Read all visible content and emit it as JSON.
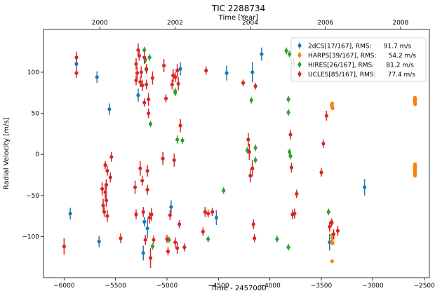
{
  "chart_data": {
    "type": "scatter",
    "title": "TIC 2288734",
    "xlabel": "Time - 2457000",
    "ylabel": "Radial Velocity [m/s]",
    "top_xlabel": "Time [Year]",
    "xlim": [
      -6200,
      -2450
    ],
    "ylim": [
      -150,
      152
    ],
    "xticks": [
      -6000,
      -5500,
      -5000,
      -4500,
      -4000,
      -3500,
      -3000,
      -2500
    ],
    "yticks": [
      -100,
      -50,
      0,
      50,
      100
    ],
    "top_ticks": [
      {
        "label": "2000",
        "x": -5653
      },
      {
        "label": "2002",
        "x": -4922
      },
      {
        "label": "2004",
        "x": -4192
      },
      {
        "label": "2006",
        "x": -3461
      },
      {
        "label": "2008",
        "x": -2730
      }
    ],
    "legend_position": "top-right",
    "series": [
      {
        "name": "2dCS[17/167], RMS:      91.7 m/s",
        "color": "#1f77b4",
        "points": [
          [
            -5880,
            110,
            7
          ],
          [
            -5940,
            -72,
            7
          ],
          [
            -5680,
            94,
            7
          ],
          [
            -5660,
            -106,
            7
          ],
          [
            -5560,
            55,
            7
          ],
          [
            -5280,
            72,
            8
          ],
          [
            -5230,
            -120,
            9
          ],
          [
            -5220,
            -82,
            6
          ],
          [
            -5190,
            -90,
            12
          ],
          [
            -4960,
            -64,
            8
          ],
          [
            -4870,
            104,
            8
          ],
          [
            -4520,
            -77,
            9
          ],
          [
            -4420,
            99,
            9
          ],
          [
            -4170,
            100,
            12
          ],
          [
            -4080,
            122,
            8
          ],
          [
            -3420,
            -107,
            10
          ],
          [
            -3080,
            -40,
            10
          ]
        ]
      },
      {
        "name": "HARPS[39/167], RMS:      54.2 m/s",
        "color": "#ff7f0e",
        "points": [
          [
            -3400,
            60,
            2
          ],
          [
            -3395,
            58,
            2
          ],
          [
            -3390,
            56,
            2
          ],
          [
            -3395,
            62,
            2
          ],
          [
            -3400,
            -82,
            2
          ],
          [
            -3398,
            -84,
            2
          ],
          [
            -3395,
            -98,
            2
          ],
          [
            -3392,
            -102,
            2
          ],
          [
            -3398,
            -106,
            2
          ],
          [
            -3390,
            -108,
            2
          ],
          [
            -3395,
            -130,
            2
          ],
          [
            -2590,
            62,
            2
          ],
          [
            -2590,
            64,
            2
          ],
          [
            -2590,
            65,
            2
          ],
          [
            -2590,
            66,
            2
          ],
          [
            -2590,
            67,
            2
          ],
          [
            -2590,
            68,
            2
          ],
          [
            -2588,
            63,
            2
          ],
          [
            -2588,
            61,
            2
          ],
          [
            -2592,
            66,
            2
          ],
          [
            -2590,
            69,
            2
          ],
          [
            -2590,
            -12,
            2
          ],
          [
            -2590,
            -18,
            2
          ],
          [
            -2590,
            -20,
            2
          ],
          [
            -2590,
            -22,
            2
          ],
          [
            -2590,
            -24,
            2
          ],
          [
            -2588,
            -16,
            2
          ],
          [
            -2592,
            -21,
            2
          ],
          [
            -2590,
            -14,
            2
          ],
          [
            -2590,
            -23,
            2
          ],
          [
            -2588,
            -19,
            2
          ],
          [
            -2592,
            -25,
            2
          ],
          [
            -2590,
            -17,
            2
          ],
          [
            -2590,
            -26,
            2
          ],
          [
            -2588,
            -13,
            2
          ],
          [
            -2590,
            -21,
            2
          ],
          [
            -2592,
            -15,
            2
          ],
          [
            -2590,
            63,
            2
          ],
          [
            -2588,
            67,
            2
          ]
        ]
      },
      {
        "name": "HIRES[26/167], RMS:      81.2 m/s",
        "color": "#2ca02c",
        "points": [
          [
            -5220,
            127,
            4
          ],
          [
            -5210,
            115,
            4
          ],
          [
            -5200,
            103,
            4
          ],
          [
            -5160,
            37,
            4
          ],
          [
            -5140,
            -112,
            4
          ],
          [
            -4980,
            -104,
            4
          ],
          [
            -4920,
            77,
            4
          ],
          [
            -4900,
            18,
            5
          ],
          [
            -4850,
            17,
            4
          ],
          [
            -4600,
            -103,
            4
          ],
          [
            -4450,
            -44,
            4
          ],
          [
            -4220,
            5,
            4
          ],
          [
            -4180,
            66,
            4
          ],
          [
            -4140,
            -7,
            4
          ],
          [
            -3930,
            -103,
            4
          ],
          [
            -3840,
            126,
            4
          ],
          [
            -3820,
            67,
            4
          ],
          [
            -3820,
            51,
            4
          ],
          [
            -3820,
            -113,
            4
          ],
          [
            -3810,
            3,
            4
          ],
          [
            -3800,
            -2,
            4
          ],
          [
            -3430,
            -70,
            4
          ],
          [
            -5170,
            118,
            4
          ],
          [
            -4140,
            8,
            4
          ],
          [
            -3810,
            122,
            4
          ],
          [
            -4920,
            75,
            4
          ]
        ]
      },
      {
        "name": "UCLES[85/167], RMS:      77.4 m/s",
        "color": "#d62728",
        "points": [
          [
            -6000,
            -112,
            10
          ],
          [
            -5880,
            118,
            7
          ],
          [
            -5880,
            99,
            6
          ],
          [
            -5630,
            -42,
            8
          ],
          [
            -5620,
            -62,
            8
          ],
          [
            -5610,
            -70,
            6
          ],
          [
            -5600,
            -13,
            5
          ],
          [
            -5600,
            -46,
            8
          ],
          [
            -5590,
            -37,
            7
          ],
          [
            -5590,
            -56,
            8
          ],
          [
            -5580,
            -75,
            7
          ],
          [
            -5550,
            -28,
            6
          ],
          [
            -5540,
            -3,
            6
          ],
          [
            -5310,
            -40,
            8
          ],
          [
            -5300,
            -73,
            6
          ],
          [
            -5300,
            110,
            7
          ],
          [
            -5290,
            99,
            8
          ],
          [
            -5280,
            127,
            8
          ],
          [
            -5270,
            120,
            6
          ],
          [
            -5260,
            88,
            6
          ],
          [
            -5260,
            -17,
            9
          ],
          [
            -5250,
            100,
            7
          ],
          [
            -5240,
            84,
            7
          ],
          [
            -5240,
            -32,
            6
          ],
          [
            -5230,
            -70,
            6
          ],
          [
            -5220,
            63,
            5
          ],
          [
            -5220,
            118,
            8
          ],
          [
            -5210,
            -104,
            6
          ],
          [
            -5200,
            85,
            6
          ],
          [
            -5200,
            104,
            6
          ],
          [
            -5190,
            -20,
            7
          ],
          [
            -5190,
            -43,
            6
          ],
          [
            -5180,
            50,
            6
          ],
          [
            -5180,
            67,
            8
          ],
          [
            -5170,
            -77,
            7
          ],
          [
            -5160,
            -126,
            12
          ],
          [
            -5150,
            -73,
            8
          ],
          [
            -5140,
            93,
            8
          ],
          [
            -5130,
            -104,
            5
          ],
          [
            -5040,
            -5,
            8
          ],
          [
            -5030,
            108,
            8
          ],
          [
            -5010,
            68,
            5
          ],
          [
            -5000,
            -103,
            5
          ],
          [
            -4990,
            -118,
            5
          ],
          [
            -4970,
            -74,
            6
          ],
          [
            -4950,
            85,
            6
          ],
          [
            -4940,
            96,
            8
          ],
          [
            -4930,
            -7,
            8
          ],
          [
            -4920,
            -107,
            6
          ],
          [
            -4900,
            -114,
            7
          ],
          [
            -4900,
            102,
            8
          ],
          [
            -4890,
            86,
            8
          ],
          [
            -4880,
            -85,
            5
          ],
          [
            -4870,
            35,
            8
          ],
          [
            -4830,
            -113,
            5
          ],
          [
            -4650,
            -94,
            5
          ],
          [
            -4630,
            -70,
            6
          ],
          [
            -4620,
            102,
            5
          ],
          [
            -4600,
            -72,
            5
          ],
          [
            -4560,
            -70,
            5
          ],
          [
            -4260,
            87,
            4
          ],
          [
            -4210,
            18,
            8
          ],
          [
            -4200,
            3,
            10
          ],
          [
            -4190,
            -26,
            8
          ],
          [
            -4170,
            -17,
            10
          ],
          [
            -4160,
            -85,
            6
          ],
          [
            -4150,
            -102,
            5
          ],
          [
            -4140,
            83,
            4
          ],
          [
            -3800,
            24,
            6
          ],
          [
            -3790,
            -16,
            6
          ],
          [
            -3780,
            -73,
            6
          ],
          [
            -3770,
            111,
            6
          ],
          [
            -3760,
            -72,
            6
          ],
          [
            -3740,
            -48,
            5
          ],
          [
            -3500,
            -22,
            5
          ],
          [
            -3480,
            13,
            5
          ],
          [
            -3450,
            47,
            6
          ],
          [
            -3420,
            -88,
            6
          ],
          [
            -3400,
            -83,
            5
          ],
          [
            -3380,
            -97,
            6
          ],
          [
            -3340,
            -93,
            6
          ],
          [
            -5450,
            -102,
            6
          ],
          [
            -5580,
            -20,
            6
          ],
          [
            -5300,
            90,
            6
          ],
          [
            -4920,
            94,
            6
          ]
        ]
      }
    ]
  }
}
